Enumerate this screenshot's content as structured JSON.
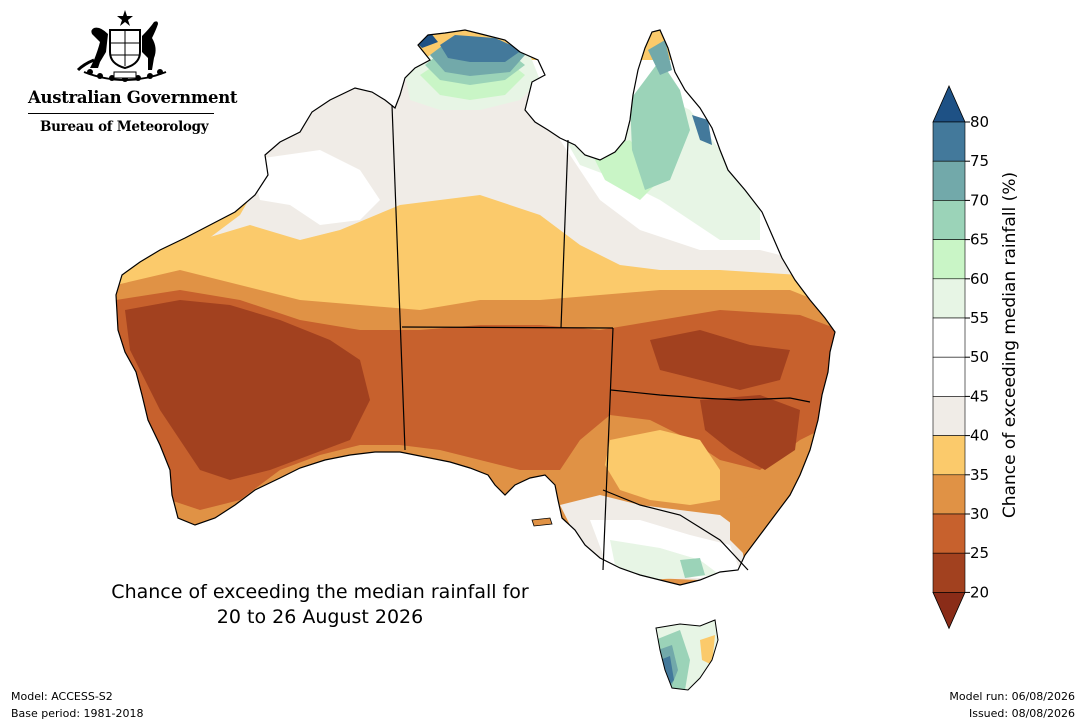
{
  "branding": {
    "government": "Australian Government",
    "bureau": "Bureau of Meteorology",
    "crest_icon": "coat-of-arms-icon"
  },
  "map": {
    "title_line1": "Chance of exceeding the median rainfall for",
    "title_line2": "20 to 26 August 2026",
    "palette": {
      "20-25": "#a2411f",
      "25-30": "#c7612d",
      "30-35": "#e09245",
      "35-40": "#fbca6b",
      "40-45": "#f0ece7",
      "45-50": "#ffffff",
      "50-55": "#ffffff",
      "55-60": "#e7f5e5",
      "60-65": "#c9f5c6",
      "65-70": "#9bd3b8",
      "70-75": "#72a9aa",
      "75-80": "#43799b",
      "above-80": "#1e5185",
      "below-20": "#8a2c18"
    }
  },
  "colorbar": {
    "label": "Chance of exceeding median rainfall (%)",
    "ticks": [
      "80",
      "75",
      "70",
      "65",
      "60",
      "55",
      "50",
      "45",
      "40",
      "35",
      "30",
      "25",
      "20"
    ]
  },
  "footer": {
    "model": "Model: ACCESS-S2",
    "base_period": "Base period: 1981-2018",
    "model_run": "Model run: 06/08/2026",
    "issued": "Issued: 08/08/2026"
  }
}
